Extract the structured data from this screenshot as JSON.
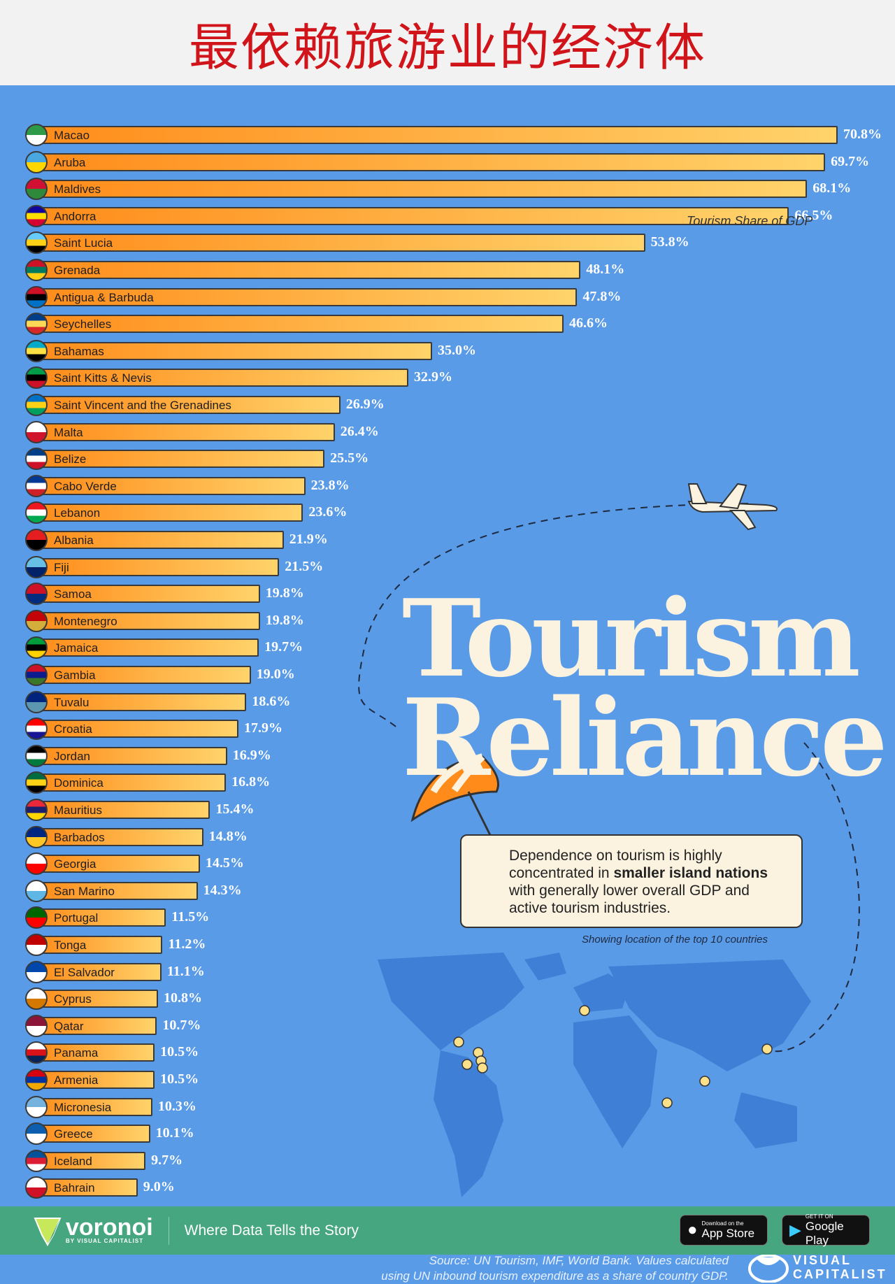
{
  "title": "最依赖旅游业的经济体",
  "chart_data": {
    "type": "bar",
    "orientation": "horizontal",
    "title": "Tourism Reliance",
    "legend": "Tourism Share of GDP",
    "unit": "%",
    "xlim": [
      0,
      70.8
    ],
    "categories": [
      "Macao",
      "Aruba",
      "Maldives",
      "Andorra",
      "Saint Lucia",
      "Grenada",
      "Antigua & Barbuda",
      "Seychelles",
      "Bahamas",
      "Saint Kitts & Nevis",
      "Saint Vincent and the Grenadines",
      "Malta",
      "Belize",
      "Cabo Verde",
      "Lebanon",
      "Albania",
      "Fiji",
      "Samoa",
      "Montenegro",
      "Jamaica",
      "Gambia",
      "Tuvalu",
      "Croatia",
      "Jordan",
      "Dominica",
      "Mauritius",
      "Barbados",
      "Georgia",
      "San Marino",
      "Portugal",
      "Tonga",
      "El Salvador",
      "Cyprus",
      "Qatar",
      "Panama",
      "Armenia",
      "Micronesia",
      "Greece",
      "Iceland",
      "Bahrain"
    ],
    "values": [
      70.8,
      69.7,
      68.1,
      66.5,
      53.8,
      48.1,
      47.8,
      46.6,
      35.0,
      32.9,
      26.9,
      26.4,
      25.5,
      23.8,
      23.6,
      21.9,
      21.5,
      19.8,
      19.8,
      19.7,
      19.0,
      18.6,
      17.9,
      16.9,
      16.8,
      15.4,
      14.8,
      14.5,
      14.3,
      11.5,
      11.2,
      11.1,
      10.8,
      10.7,
      10.5,
      10.5,
      10.3,
      10.1,
      9.7,
      9.0
    ],
    "labels": [
      "70.8%",
      "69.7%",
      "68.1%",
      "66.5%",
      "53.8%",
      "48.1%",
      "47.8%",
      "46.6%",
      "35.0%",
      "32.9%",
      "26.9%",
      "26.4%",
      "25.5%",
      "23.8%",
      "23.6%",
      "21.9%",
      "21.5%",
      "19.8%",
      "19.8%",
      "19.7%",
      "19.0%",
      "18.6%",
      "17.9%",
      "16.9%",
      "16.8%",
      "15.4%",
      "14.8%",
      "14.5%",
      "14.3%",
      "11.5%",
      "11.2%",
      "11.1%",
      "10.8%",
      "10.7%",
      "10.5%",
      "10.5%",
      "10.3%",
      "10.1%",
      "9.7%",
      "9.0%"
    ],
    "flag_colors": [
      [
        "#2e9a48",
        "#fff"
      ],
      [
        "#4aa8e0",
        "#ffd700"
      ],
      [
        "#d21034",
        "#2e8a3a"
      ],
      [
        "#10069f",
        "#fedd00",
        "#d50032"
      ],
      [
        "#66ccff",
        "#fcd116",
        "#000"
      ],
      [
        "#ce1126",
        "#007a5e",
        "#fcd116"
      ],
      [
        "#ce1126",
        "#000",
        "#0072c6"
      ],
      [
        "#003f87",
        "#fcd856",
        "#d62828"
      ],
      [
        "#00abc9",
        "#fae042",
        "#000"
      ],
      [
        "#009e49",
        "#000",
        "#ce1126"
      ],
      [
        "#0072c6",
        "#fcd116",
        "#009e60"
      ],
      [
        "#fff",
        "#cf142b"
      ],
      [
        "#003f87",
        "#fff",
        "#ce1126"
      ],
      [
        "#003893",
        "#fff",
        "#cf2027"
      ],
      [
        "#ee161f",
        "#fff",
        "#00a850"
      ],
      [
        "#e41e20",
        "#000"
      ],
      [
        "#68bfe5",
        "#012169"
      ],
      [
        "#ce1126",
        "#002b7f"
      ],
      [
        "#c40308",
        "#d3ae3b"
      ],
      [
        "#009b3a",
        "#000",
        "#fed100"
      ],
      [
        "#ce1126",
        "#0c1c8c",
        "#3a7728"
      ],
      [
        "#00247d",
        "#5b97b1"
      ],
      [
        "#ff0000",
        "#fff",
        "#171796"
      ],
      [
        "#000",
        "#fff",
        "#007a3d"
      ],
      [
        "#006b3f",
        "#fcd116",
        "#000"
      ],
      [
        "#ea2839",
        "#1a206d",
        "#ffd500"
      ],
      [
        "#00267f",
        "#ffc726"
      ],
      [
        "#fff",
        "#ff0000"
      ],
      [
        "#fff",
        "#5eb6e4"
      ],
      [
        "#006600",
        "#ff0000"
      ],
      [
        "#c10000",
        "#fff"
      ],
      [
        "#0047ab",
        "#fff"
      ],
      [
        "#fff",
        "#d57800"
      ],
      [
        "#8a1538",
        "#fff"
      ],
      [
        "#fff",
        "#da121a",
        "#072357"
      ],
      [
        "#d90012",
        "#0033a0",
        "#f2a800"
      ],
      [
        "#75b2dd",
        "#fff"
      ],
      [
        "#0d5eaf",
        "#fff"
      ],
      [
        "#02529c",
        "#dc1e35",
        "#fff"
      ],
      [
        "#fff",
        "#ce1126"
      ]
    ]
  },
  "callout": {
    "text_before": "Dependence on tourism is highly concentrated in ",
    "bold": "smaller island nations",
    "text_after": " with generally lower overall GDP and active tourism industries."
  },
  "map_label": "Showing location of the top 10 countries",
  "source": {
    "line1": "Source: UN Tourism, IMF, World Bank. Values calculated",
    "line2": "using UN inbound tourism expenditure as a share of country GDP."
  },
  "brand": {
    "vc_line1": "VISUAL",
    "vc_line2": "CAPITALIST",
    "voronoi": "voronoi",
    "voronoi_by": "BY VISUAL CAPITALIST",
    "tagline": "Where Data Tells the Story"
  },
  "stores": {
    "apple_small": "Download on the",
    "apple_big": "App Store",
    "google_small": "GET IT ON",
    "google_big": "Google Play"
  },
  "colors": {
    "background": "#5a9be8",
    "bar_start": "#ff8c1a",
    "bar_end": "#ffd36b",
    "title": "#d0141a",
    "footer": "#45a680",
    "headline": "#fbf3e0"
  }
}
